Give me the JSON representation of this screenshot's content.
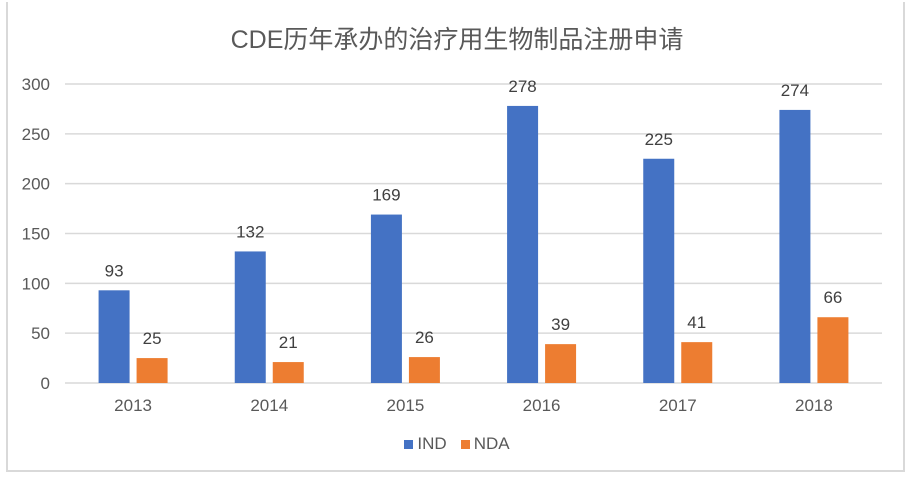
{
  "chart_data": {
    "type": "bar",
    "title": "CDE历年承办的治疗用生物制品注册申请",
    "xlabel": "",
    "ylabel": "",
    "categories": [
      "2013",
      "2014",
      "2015",
      "2016",
      "2017",
      "2018"
    ],
    "series": [
      {
        "name": "IND",
        "color": "#4472c4",
        "values": [
          93,
          132,
          169,
          278,
          225,
          274
        ]
      },
      {
        "name": "NDA",
        "color": "#ed7d31",
        "values": [
          25,
          21,
          26,
          39,
          41,
          66
        ]
      }
    ],
    "ylim": [
      0,
      300
    ],
    "yticks": [
      0,
      50,
      100,
      150,
      200,
      250,
      300
    ],
    "grid": true,
    "data_labels": true,
    "legend_position": "bottom"
  }
}
